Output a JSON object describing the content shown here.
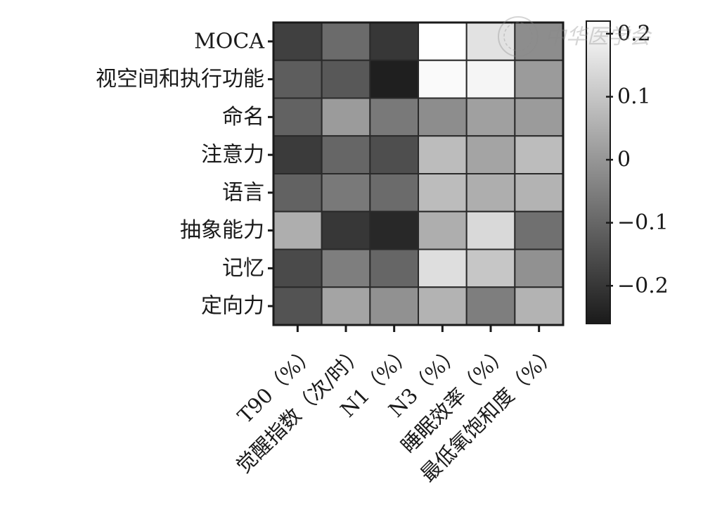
{
  "chart_data": {
    "type": "heatmap",
    "rows": [
      "MOCA",
      "视空间和执行功能",
      "命名",
      "注意力",
      "语言",
      "抽象能力",
      "记忆",
      "定向力"
    ],
    "columns": [
      "T90（%）",
      "觉醒指数（次/时）",
      "N1（%）",
      "N3（%）",
      "睡眠效率（%）",
      "最低氧饱和度（%）"
    ],
    "values": [
      [
        -0.18,
        -0.09,
        -0.2,
        0.22,
        0.16,
        -0.02
      ],
      [
        -0.12,
        -0.13,
        -0.25,
        0.21,
        0.2,
        0.01
      ],
      [
        -0.11,
        0.01,
        -0.06,
        -0.02,
        0.02,
        0.01
      ],
      [
        -0.19,
        -0.1,
        -0.15,
        0.08,
        0.03,
        0.08
      ],
      [
        -0.11,
        -0.06,
        -0.09,
        0.08,
        0.05,
        0.06
      ],
      [
        0.05,
        -0.2,
        -0.23,
        0.05,
        0.14,
        -0.08
      ],
      [
        -0.16,
        -0.05,
        -0.1,
        0.15,
        0.1,
        -0.01
      ],
      [
        -0.14,
        0.03,
        -0.01,
        0.06,
        -0.05,
        0.06
      ]
    ],
    "colorbar": {
      "range": [
        -0.26,
        0.22
      ],
      "ticks": [
        -0.2,
        -0.1,
        0,
        0.1,
        0.2
      ],
      "tick_labels": [
        "−0.2",
        "−0.1",
        "0",
        "0.1",
        "0.2"
      ],
      "low_color": "#1a1a1a",
      "high_color": "#ffffff"
    }
  },
  "watermark": "中华医学会"
}
